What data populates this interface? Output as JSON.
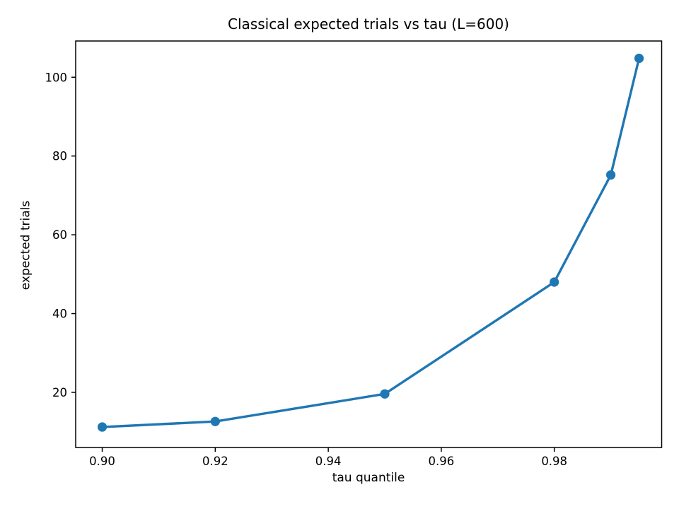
{
  "chart_data": {
    "type": "line",
    "title": "Classical expected trials vs tau (L=600)",
    "xlabel": "tau quantile",
    "ylabel": "expected trials",
    "x": [
      0.9,
      0.92,
      0.95,
      0.98,
      0.99,
      0.995
    ],
    "y": [
      11.2,
      12.6,
      19.6,
      48.0,
      75.2,
      104.8
    ],
    "series_name": "expected trials",
    "xlim": [
      0.8953,
      0.999
    ],
    "ylim": [
      6.0,
      109.2
    ],
    "xticks": {
      "values": [
        0.9,
        0.92,
        0.94,
        0.96,
        0.98
      ],
      "labels": [
        "0.90",
        "0.92",
        "0.94",
        "0.96",
        "0.98"
      ]
    },
    "yticks": {
      "values": [
        20,
        40,
        60,
        80,
        100
      ],
      "labels": [
        "20",
        "40",
        "60",
        "80",
        "100"
      ]
    },
    "line_color": "#1f77b4",
    "marker": "o",
    "grid": false,
    "legend": null
  }
}
